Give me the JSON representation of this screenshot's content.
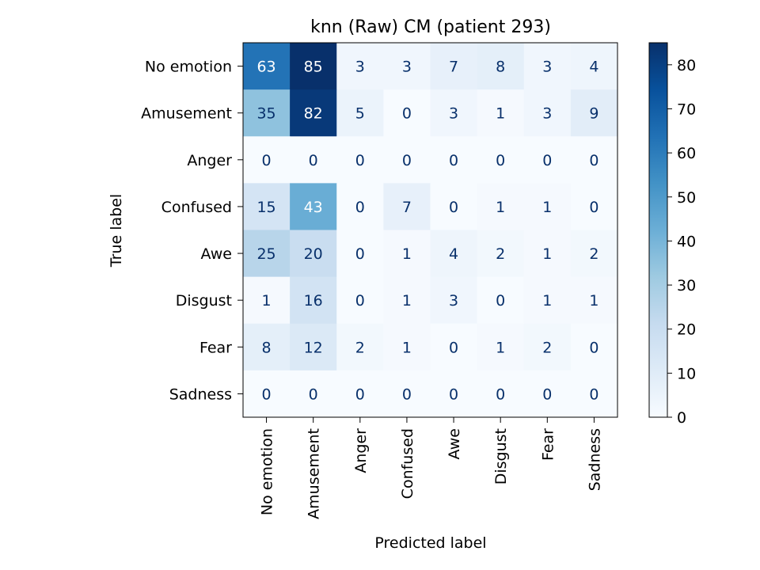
{
  "chart_data": {
    "type": "heatmap",
    "title": "knn (Raw) CM (patient 293)",
    "xlabel": "Predicted label",
    "ylabel": "True label",
    "x_categories": [
      "No emotion",
      "Amusement",
      "Anger",
      "Confused",
      "Awe",
      "Disgust",
      "Fear",
      "Sadness"
    ],
    "y_categories": [
      "No emotion",
      "Amusement",
      "Anger",
      "Confused",
      "Awe",
      "Disgust",
      "Fear",
      "Sadness"
    ],
    "values": [
      [
        63,
        85,
        3,
        3,
        7,
        8,
        3,
        4
      ],
      [
        35,
        82,
        5,
        0,
        3,
        1,
        3,
        9
      ],
      [
        0,
        0,
        0,
        0,
        0,
        0,
        0,
        0
      ],
      [
        15,
        43,
        0,
        7,
        0,
        1,
        1,
        0
      ],
      [
        25,
        20,
        0,
        1,
        4,
        2,
        1,
        2
      ],
      [
        1,
        16,
        0,
        1,
        3,
        0,
        1,
        1
      ],
      [
        8,
        12,
        2,
        1,
        0,
        1,
        2,
        0
      ],
      [
        0,
        0,
        0,
        0,
        0,
        0,
        0,
        0
      ]
    ],
    "colormap": "Blues",
    "value_range": [
      0,
      85
    ],
    "colorbar_ticks": [
      0,
      10,
      20,
      30,
      40,
      50,
      60,
      70,
      80
    ],
    "colors": {
      "low": "#f7fbff",
      "high": "#08306b",
      "text_dark": "#08306b",
      "text_light": "#ffffff"
    }
  }
}
